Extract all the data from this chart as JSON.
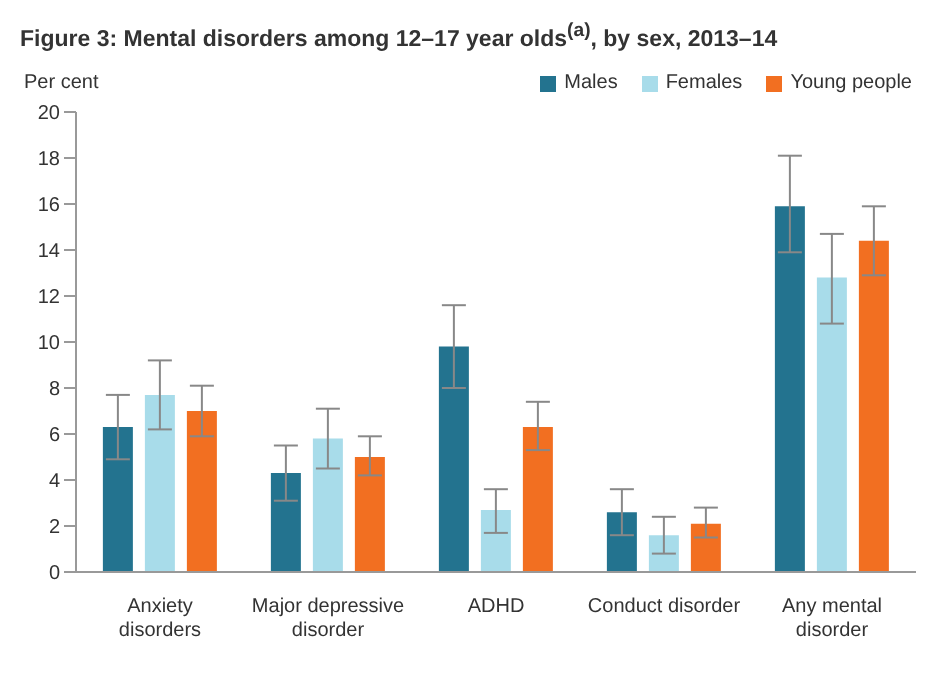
{
  "chart_data": {
    "type": "bar",
    "title": "Figure 3: Mental disorders among 12–17 year olds$^{(a)}$, by sex, 2013–14",
    "ylabel": "Per cent",
    "categories": [
      "Anxiety disorders",
      "Major depressive disorder",
      "ADHD",
      "Conduct disorder",
      "Any mental disorder"
    ],
    "series": [
      {
        "name": "Males",
        "color": "#23738f",
        "values": [
          6.3,
          4.3,
          9.8,
          2.6,
          15.9
        ],
        "errors": [
          [
            4.9,
            7.7
          ],
          [
            3.1,
            5.5
          ],
          [
            8.0,
            11.6
          ],
          [
            1.6,
            3.6
          ],
          [
            13.9,
            18.1
          ]
        ]
      },
      {
        "name": "Females",
        "color": "#a8dcea",
        "values": [
          7.7,
          5.8,
          2.7,
          1.6,
          12.8
        ],
        "errors": [
          [
            6.2,
            9.2
          ],
          [
            4.5,
            7.1
          ],
          [
            1.7,
            3.6
          ],
          [
            0.8,
            2.4
          ],
          [
            10.8,
            14.7
          ]
        ]
      },
      {
        "name": "Young people",
        "color": "#f26f21",
        "values": [
          7.0,
          5.0,
          6.3,
          2.1,
          14.4
        ],
        "errors": [
          [
            5.9,
            8.1
          ],
          [
            4.2,
            5.9
          ],
          [
            5.3,
            7.4
          ],
          [
            1.5,
            2.8
          ],
          [
            12.9,
            15.9
          ]
        ]
      }
    ],
    "ylim": [
      0,
      20
    ],
    "yticks": [
      0,
      2,
      4,
      6,
      8,
      10,
      12,
      14,
      16,
      18,
      20
    ],
    "grid": false,
    "legend": "top right"
  }
}
